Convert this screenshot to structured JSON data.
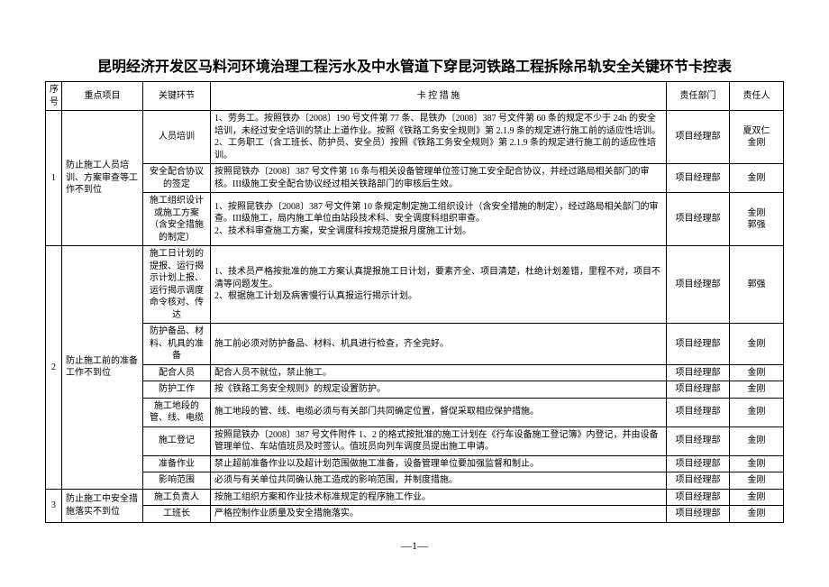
{
  "title": "昆明经济开发区马料河环境治理工程污水及中水管道下穿昆河铁路工程拆除吊轨安全关键环节卡控表",
  "headers": {
    "seq": "序号",
    "focus": "重点项目",
    "key": "关键环节",
    "measure": "卡 控 措 施",
    "dept": "责任部门",
    "resp": "责任人"
  },
  "rows": [
    {
      "seq": "1",
      "focus": "防止施工人员培训、方案审查等工作不到位",
      "items": [
        {
          "key": "人员培训",
          "measure": "1、劳务工。按照铁办〔2008〕190 号文件第 77 条、昆铁办〔2008〕387 号文件第 60 条的规定不少于 24h 的安全培训，未经过安全培训的禁止上道作业。按照《铁路工务安全规则》第 2.1.9 条的规定进行施工前的适应性培训。\n2、工务职工（含工班长、防护员、安全员）按照《铁路工务安全规则》第 2.1.9 条的规定进行施工前的适应性培训。",
          "dept": "项目经理部",
          "resp": "夏双仁\n金刚"
        },
        {
          "key": "安全配合协议的签定",
          "measure": "按照昆铁办〔2008〕387 号文件第 16 条与相关设备管理单位签订施工安全配合协议，并经过路局相关部门的审核。III级施工安全配合协议经过相关铁路部门的审核后生效。",
          "dept": "项目经理部",
          "resp": "金刚"
        },
        {
          "key": "施工组织设计或施工方案（含安全措施的制定）",
          "measure": "1、按照昆铁办〔2008〕387 号文件第 10 条规定制定施工组织设计（含安全措施的制定），经过路局相关部门的审查。III级施工，局内施工单位由站段技术科、安全调度科组织审查。\n2、技术科审查施工方案，安全调度科按规范提报月度施工计划。",
          "dept": "项目经理部",
          "resp": "金刚\n郭强"
        }
      ]
    },
    {
      "seq": "2",
      "focus": "防止施工前的准备工作不到位",
      "items": [
        {
          "key": "施工日计划的提报、运行揭示计划上报、运行揭示调度命令核对、传达",
          "measure": "1、技术员严格按批准的施工方案认真提报施工日计划，要素齐全、项目清楚，杜绝计划差错，里程不对，项目不清等问题发生。\n2、根据施工计划及病害慢行认真报运行揭示计划。",
          "dept": "项目经理部",
          "resp": "郭强"
        },
        {
          "key": "防护备品、材料、机具的准备",
          "measure": "施工前必须对防护备品、材料、机具进行检查，齐全完好。",
          "dept": "项目经理部",
          "resp": "金刚"
        },
        {
          "key": "配合人员",
          "measure": "配合人员不就位，禁止施工。",
          "dept": "项目经理部",
          "resp": "金刚"
        },
        {
          "key": "防护工作",
          "measure": "按《铁路工务安全规则》的规定设置防护。",
          "dept": "项目经理部",
          "resp": "金刚"
        },
        {
          "key": "施工地段的管、线、电缆",
          "measure": "施工地段的管、线、电缆必须与有关部门共同确定位置，督促采取相应保护措施。",
          "dept": "项目经理部",
          "resp": "金刚"
        },
        {
          "key": "施工登记",
          "measure": "按照昆铁办〔2008〕387 号文件附件 1、2 的格式按批准的施工计划在《行车设备施工登记簿》内登记，并由设备管理单位、车站值班员及时签认。值班员向列车调度员提出施工申请。",
          "dept": "项目经理部",
          "resp": "金刚"
        },
        {
          "key": "准备作业",
          "measure": "禁止超前准备作业以及超计划范围做施工准备，设备管理单位要加强监督和制止。",
          "dept": "项目经理部",
          "resp": "金刚"
        },
        {
          "key": "影响范围",
          "measure": "必须与有关单位共同确认施工造成的影响范围，并制度措施。",
          "dept": "项目经理部",
          "resp": "金刚"
        }
      ]
    },
    {
      "seq": "3",
      "focus": "防止施工中安全措施落实不到位",
      "items": [
        {
          "key": "施工负责人",
          "measure": "按施工组织方案和作业技术标准规定的程序施工作业。",
          "dept": "项目经理部",
          "resp": "金刚"
        },
        {
          "key": "工班长",
          "measure": "严格控制作业质量及安全措施落实。",
          "dept": "项目经理部",
          "resp": "金刚"
        }
      ]
    }
  ],
  "pageno": "—1—"
}
